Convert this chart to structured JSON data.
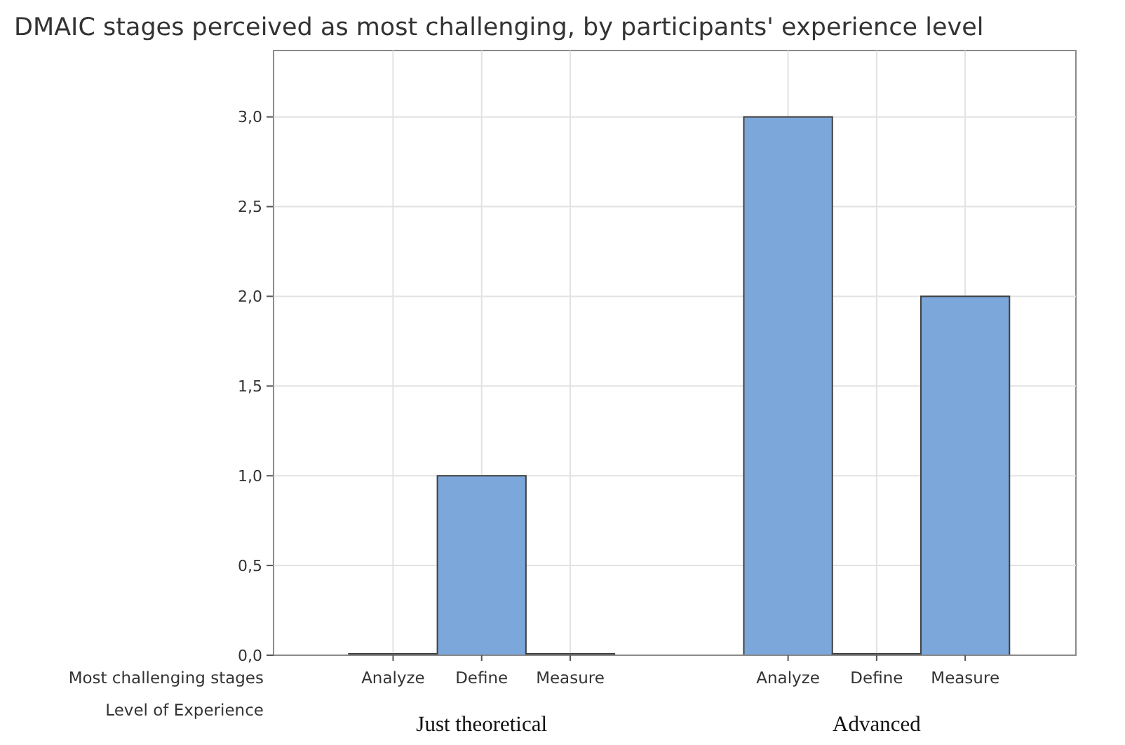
{
  "chart_data": {
    "type": "bar",
    "title": "DMAIC stages perceived as most challenging, by participants' experience level",
    "categories": [
      "Analyze",
      "Define",
      "Measure",
      "Analyze",
      "Define",
      "Measure"
    ],
    "values": [
      0,
      1,
      0,
      3,
      0,
      2
    ],
    "color": "#7ba7da",
    "xlabel": "Most challenging stages",
    "annotations": [
      "Level of Experience",
      "Just theoretical",
      "Advanced"
    ],
    "ylim": [
      0,
      3.37
    ],
    "yticks": [
      {
        "value": 0,
        "label": "0,0"
      },
      {
        "value": 0.5,
        "label": "0,5"
      },
      {
        "value": 1,
        "label": "1,0"
      },
      {
        "value": 1.5,
        "label": "1,5"
      },
      {
        "value": 2,
        "label": "2,0"
      },
      {
        "value": 2.5,
        "label": "2,5"
      },
      {
        "value": 3,
        "label": "3,0"
      }
    ],
    "grid": true
  }
}
